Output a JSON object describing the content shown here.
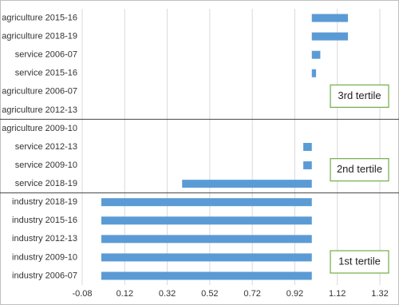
{
  "chart_data": {
    "type": "bar",
    "orientation": "horizontal",
    "base": 1,
    "color": "#5b9bd5",
    "xlim": [
      -0.08,
      1.32
    ],
    "xticks": [
      -0.08,
      0.12,
      0.32,
      0.52,
      0.72,
      0.92,
      1.12,
      1.32
    ],
    "grid": true,
    "groups": [
      {
        "label": "3rd tertile",
        "categories": [
          "agriculture  2015-16",
          "agriculture  2018-19",
          "service  2006-07",
          "service  2015-16",
          "agriculture  2006-07",
          "agriculture  2012-13"
        ],
        "values": [
          1.17,
          1.17,
          1.04,
          1.02,
          1.0,
          1.0
        ]
      },
      {
        "label": "2nd tertile",
        "categories": [
          "agriculture  2009-10",
          "service  2012-13",
          "service  2009-10",
          "service  2018-19"
        ],
        "values": [
          1.0,
          0.96,
          0.96,
          0.39
        ]
      },
      {
        "label": "1st tertile",
        "categories": [
          "industry  2018-19",
          "industry  2015-16",
          "industry  2012-13",
          "industry  2009-10",
          "industry  2006-07"
        ],
        "values": [
          0.01,
          0.01,
          0.01,
          0.01,
          0.01
        ]
      }
    ]
  }
}
